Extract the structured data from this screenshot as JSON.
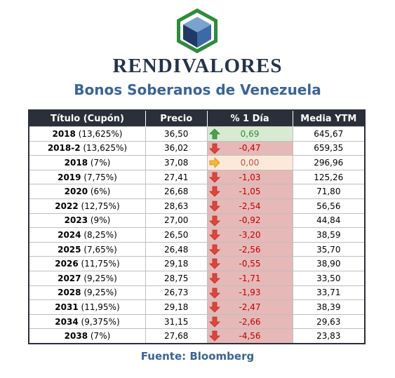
{
  "brand": {
    "name": "RENDIVALORES",
    "logo_icon": "hexagon-cube-icon",
    "colors": {
      "hexagon": "#2e8b3a",
      "cube_top": "#7aa3cf",
      "cube_left": "#1f3b63",
      "cube_right": "#3b6aa5"
    }
  },
  "title": "Bonos Soberanos de Venezuela",
  "table": {
    "headers": [
      "Título (Cupón)",
      "Precio",
      "% 1 Día",
      "Media YTM"
    ],
    "rows": [
      {
        "title": "2018",
        "coupon": " (13,625%)",
        "precio": "36,50",
        "change": "0,69",
        "trend": "up",
        "ytm": "645,67"
      },
      {
        "title": "2018-2",
        "coupon": " (13,625%)",
        "precio": "36,02",
        "change": "-0,47",
        "trend": "down",
        "ytm": "659,35"
      },
      {
        "title": "2018",
        "coupon": " (7%)",
        "precio": "37,08",
        "change": "0,00",
        "trend": "flat",
        "ytm": "296,96"
      },
      {
        "title": "2019",
        "coupon": " (7,75%)",
        "precio": "27,41",
        "change": "-1,03",
        "trend": "down",
        "ytm": "125,26"
      },
      {
        "title": "2020",
        "coupon": " (6%)",
        "precio": "26,68",
        "change": "-1,05",
        "trend": "down",
        "ytm": "71,80"
      },
      {
        "title": "2022",
        "coupon": " (12,75%)",
        "precio": "28,63",
        "change": "-2,54",
        "trend": "down",
        "ytm": "56,56"
      },
      {
        "title": "2023",
        "coupon": " (9%)",
        "precio": "27,00",
        "change": "-0,92",
        "trend": "down",
        "ytm": "44,84"
      },
      {
        "title": "2024",
        "coupon": " (8,25%)",
        "precio": "26,50",
        "change": "-3,20",
        "trend": "down",
        "ytm": "38,59"
      },
      {
        "title": "2025",
        "coupon": " (7,65%)",
        "precio": "26,48",
        "change": "-2,56",
        "trend": "down",
        "ytm": "35,70"
      },
      {
        "title": "2026",
        "coupon": " (11,75%)",
        "precio": "29,18",
        "change": "-0,55",
        "trend": "down",
        "ytm": "38,90"
      },
      {
        "title": "2027",
        "coupon": " (9,25%)",
        "precio": "28,75",
        "change": "-1,71",
        "trend": "down",
        "ytm": "33,50"
      },
      {
        "title": "2028",
        "coupon": " (9,25%)",
        "precio": "26,73",
        "change": "-1,93",
        "trend": "down",
        "ytm": "33,71"
      },
      {
        "title": "2031",
        "coupon": " (11,95%)",
        "precio": "29,18",
        "change": "-2,47",
        "trend": "down",
        "ytm": "38,39"
      },
      {
        "title": "2034",
        "coupon": " (9,375%)",
        "precio": "31,15",
        "change": "-2,66",
        "trend": "down",
        "ytm": "29,63"
      },
      {
        "title": "2038",
        "coupon": " (7%)",
        "precio": "27,68",
        "change": "-4,56",
        "trend": "down",
        "ytm": "23,83"
      }
    ],
    "trend_icons": {
      "up": "arrow-up-icon",
      "down": "arrow-down-icon",
      "flat": "arrow-right-icon"
    },
    "trend_colors": {
      "up": "#4ea24e",
      "down": "#e0443a",
      "flat": "#f5b731"
    }
  },
  "source": "Fuente: Bloomberg"
}
